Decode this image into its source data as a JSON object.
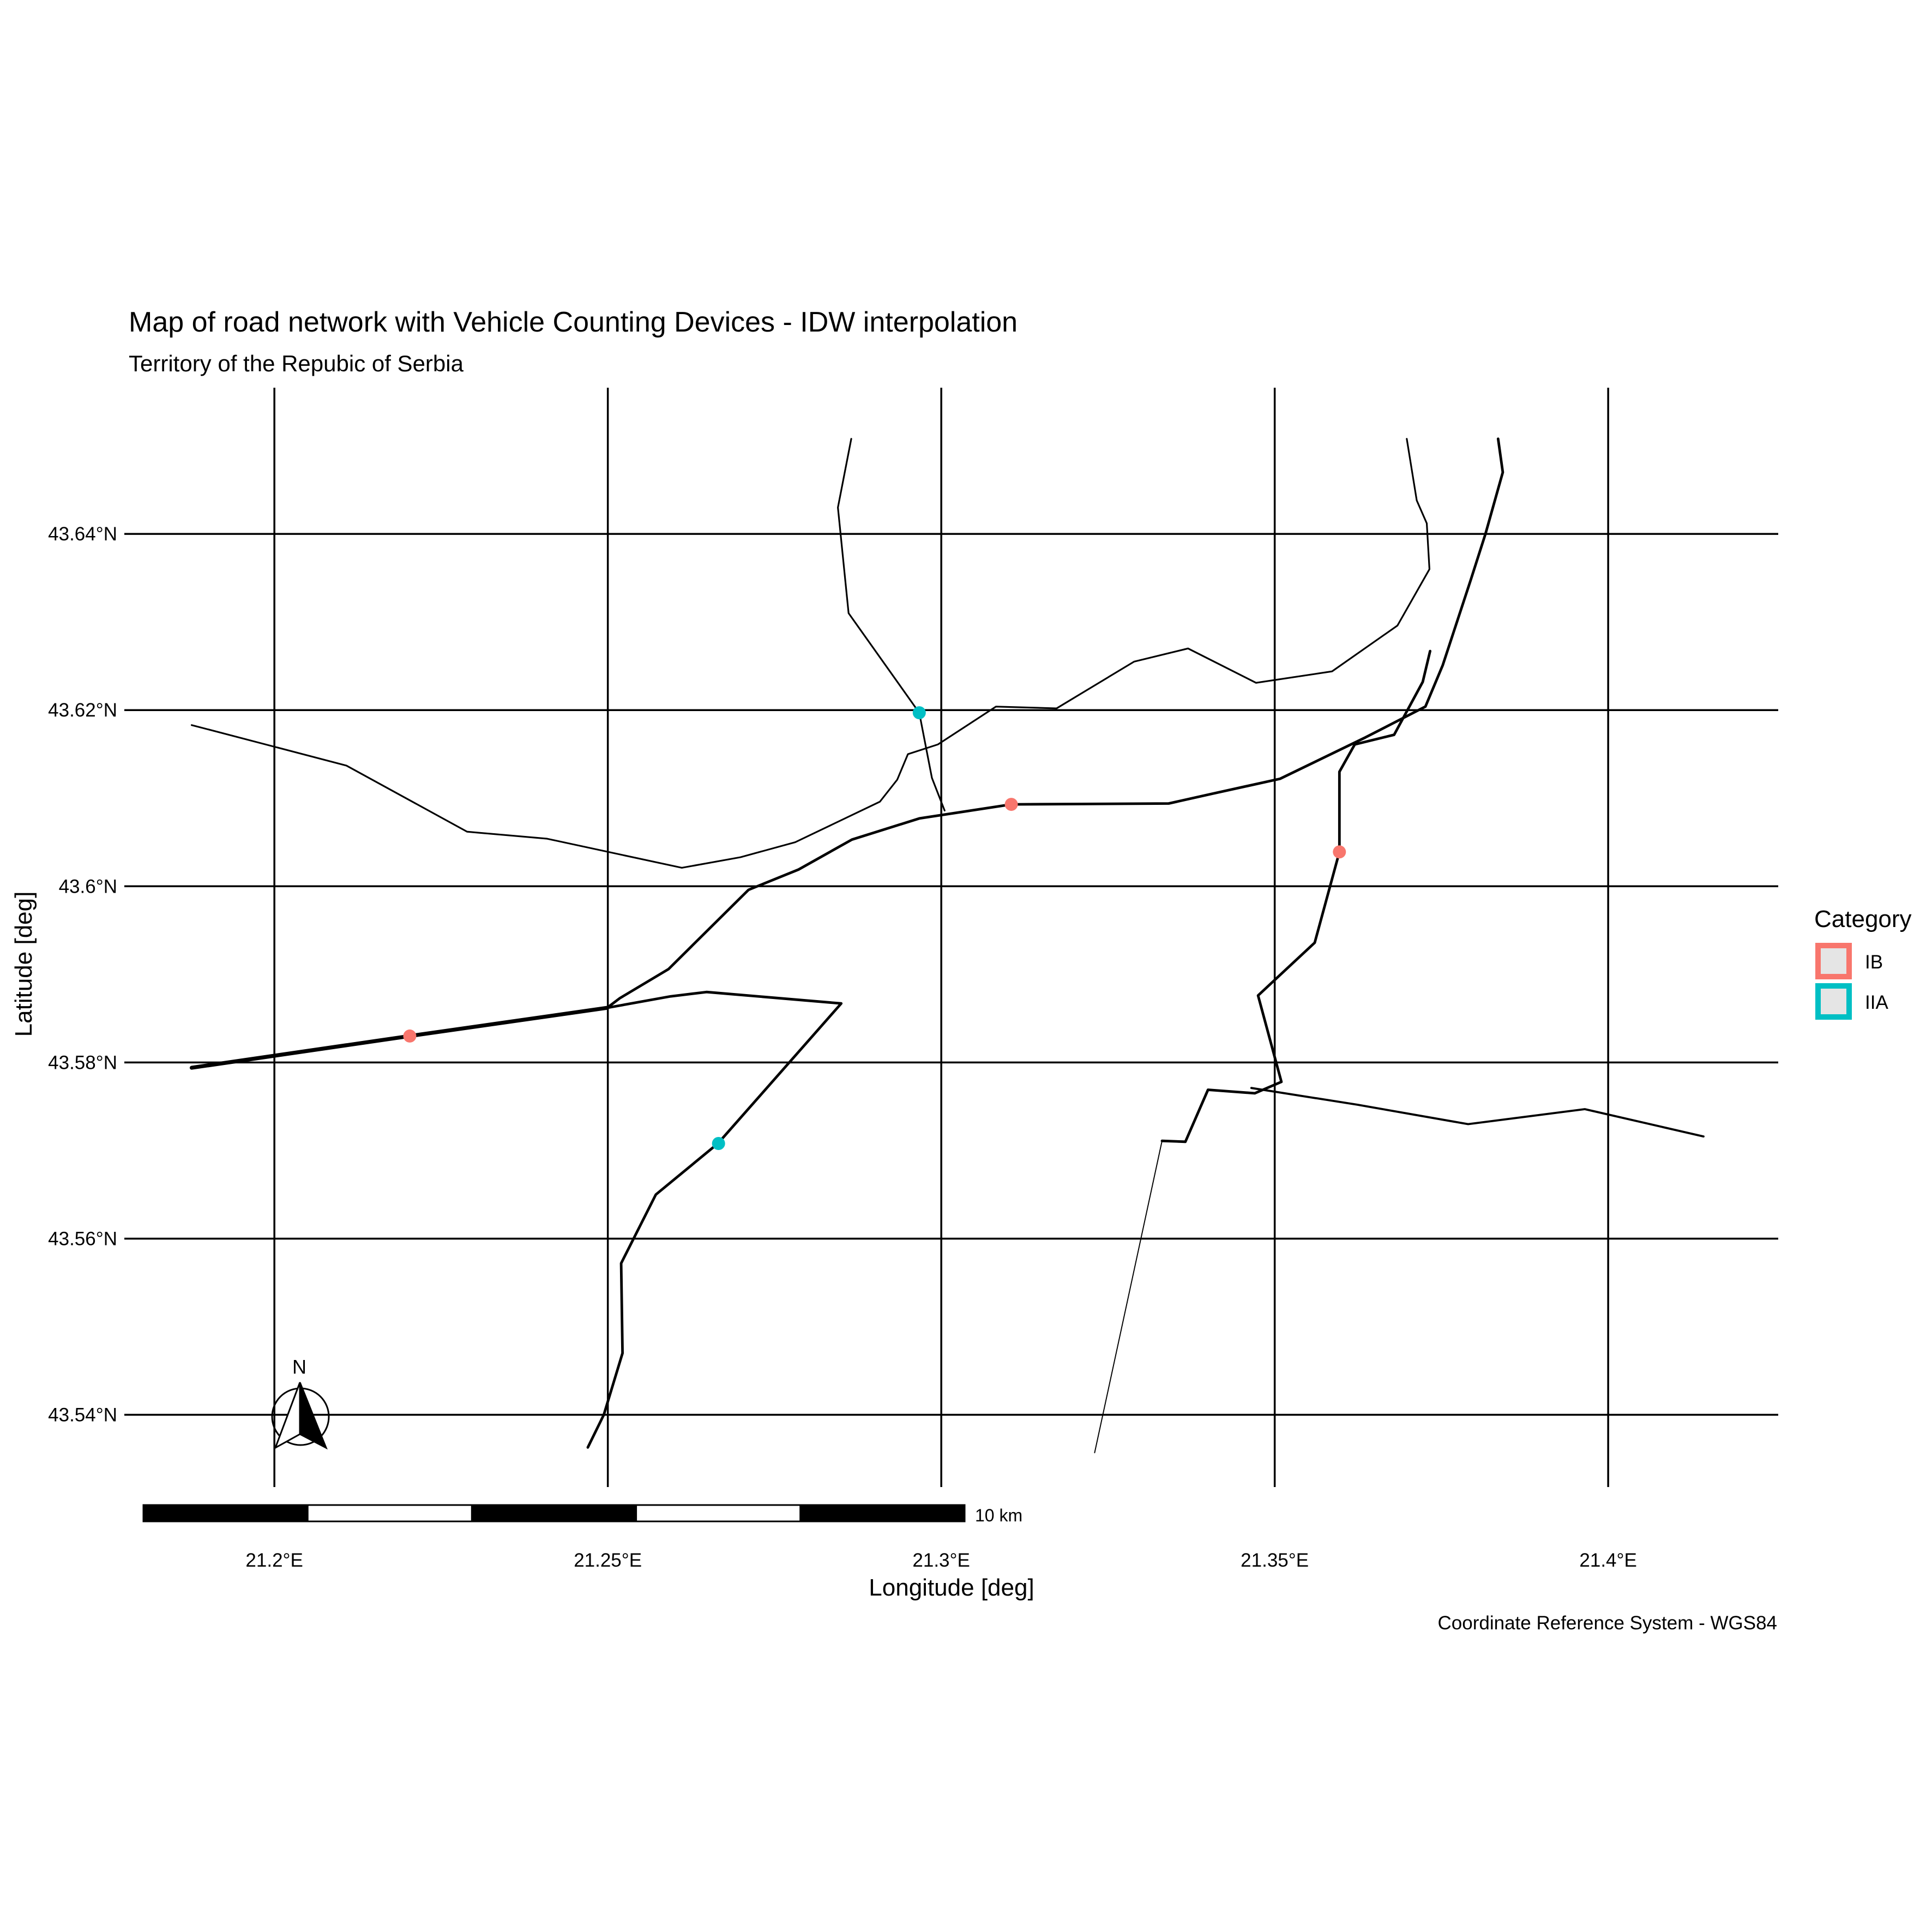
{
  "title": "Map of road network with Vehicle Counting Devices - IDW interpolation",
  "subtitle": "Territory of the Repubic of Serbia",
  "caption": "Coordinate Reference System - WGS84",
  "x_axis": {
    "label": "Longitude [deg]",
    "ticks": [
      {
        "value": 21.2,
        "label": "21.2°E"
      },
      {
        "value": 21.25,
        "label": "21.25°E"
      },
      {
        "value": 21.3,
        "label": "21.3°E"
      },
      {
        "value": 21.35,
        "label": "21.35°E"
      },
      {
        "value": 21.4,
        "label": "21.4°E"
      }
    ],
    "range": [
      21.1775,
      21.4255
    ]
  },
  "y_axis": {
    "label": "Latitude [deg]",
    "ticks": [
      {
        "value": 43.54,
        "label": "43.54°N"
      },
      {
        "value": 43.56,
        "label": "43.56°N"
      },
      {
        "value": 43.58,
        "label": "43.58°N"
      },
      {
        "value": 43.6,
        "label": "43.6°N"
      },
      {
        "value": 43.62,
        "label": "43.62°N"
      },
      {
        "value": 43.64,
        "label": "43.64°N"
      }
    ],
    "range": [
      43.5318,
      43.6566
    ]
  },
  "legend": {
    "title": "Category",
    "placement": "right",
    "items": [
      {
        "key": "IB",
        "label": "IB",
        "color": "#F8766D"
      },
      {
        "key": "IIA",
        "label": "IIA",
        "color": "#00BFC4"
      }
    ]
  },
  "north_arrow": {
    "label": "N"
  },
  "scale_bar": {
    "label": "10 km",
    "segments": 5
  },
  "chart_data": {
    "type": "map",
    "graticule": true,
    "counting_devices": [
      {
        "category": "IB",
        "lon": 21.2203,
        "lat": 43.583
      },
      {
        "category": "IB",
        "lon": 21.3105,
        "lat": 43.6093
      },
      {
        "category": "IB",
        "lon": 21.3597,
        "lat": 43.6039
      },
      {
        "category": "IIA",
        "lon": 21.2666,
        "lat": 43.5708
      },
      {
        "category": "IIA",
        "lon": 21.2967,
        "lat": 43.6197
      }
    ],
    "roads": [
      {
        "weight": 3,
        "points": [
          [
            21.1876,
            43.5794
          ],
          [
            21.2203,
            43.583
          ],
          [
            21.2499,
            43.5862
          ]
        ]
      },
      {
        "weight": 2,
        "points": [
          [
            21.2499,
            43.5862
          ],
          [
            21.2518,
            43.5873
          ],
          [
            21.2591,
            43.5906
          ],
          [
            21.2663,
            43.596
          ],
          [
            21.2711,
            43.5996
          ],
          [
            21.2786,
            43.6019
          ],
          [
            21.2866,
            43.6053
          ],
          [
            21.2967,
            43.6077
          ],
          [
            21.3105,
            43.6093
          ],
          [
            21.3341,
            43.6094
          ],
          [
            21.3406,
            43.6105
          ],
          [
            21.3508,
            43.6122
          ],
          [
            21.3636,
            43.6169
          ],
          [
            21.3726,
            43.6204
          ],
          [
            21.3752,
            43.6251
          ],
          [
            21.3794,
            43.6348
          ],
          [
            21.3816,
            43.64
          ],
          [
            21.3842,
            43.647
          ],
          [
            21.3835,
            43.6508
          ]
        ]
      },
      {
        "weight": 2,
        "points": [
          [
            21.2499,
            43.5862
          ],
          [
            21.2594,
            43.5875
          ],
          [
            21.2648,
            43.588
          ],
          [
            21.285,
            43.5867
          ],
          [
            21.2665,
            43.5708
          ],
          [
            21.2572,
            43.565
          ],
          [
            21.252,
            43.5572
          ],
          [
            21.2522,
            43.547
          ],
          [
            21.2494,
            43.54
          ],
          [
            21.247,
            43.5363
          ]
        ]
      },
      {
        "weight": 2,
        "points": [
          [
            21.3733,
            43.6267
          ],
          [
            21.3722,
            43.6232
          ],
          [
            21.3679,
            43.6172
          ],
          [
            21.362,
            43.6161
          ],
          [
            21.3597,
            43.613
          ],
          [
            21.3597,
            43.6039
          ],
          [
            21.356,
            43.5936
          ],
          [
            21.3475,
            43.5876
          ],
          [
            21.351,
            43.5778
          ],
          [
            21.347,
            43.5765
          ],
          [
            21.34,
            43.5769
          ],
          [
            21.3366,
            43.571
          ],
          [
            21.3331,
            43.5711
          ]
        ]
      },
      {
        "weight": 1.6,
        "points": [
          [
            21.3465,
            43.5771
          ],
          [
            21.3624,
            43.5752
          ],
          [
            21.379,
            43.573
          ],
          [
            21.3965,
            43.5747
          ],
          [
            21.4143,
            43.5716
          ]
        ]
      },
      {
        "weight": 0.8,
        "points": [
          [
            21.3331,
            43.5711
          ],
          [
            21.323,
            43.5357
          ]
        ]
      },
      {
        "weight": 1.3,
        "points": [
          [
            21.1876,
            43.6183
          ],
          [
            21.2108,
            43.6137
          ],
          [
            21.2289,
            43.6062
          ],
          [
            21.2409,
            43.6054
          ],
          [
            21.2611,
            43.6021
          ],
          [
            21.2699,
            43.6033
          ],
          [
            21.2781,
            43.605
          ],
          [
            21.2908,
            43.6096
          ],
          [
            21.2934,
            43.6121
          ],
          [
            21.295,
            43.615
          ],
          [
            21.2995,
            43.6161
          ],
          [
            21.3082,
            43.6204
          ],
          [
            21.3173,
            43.6202
          ],
          [
            21.3289,
            43.6255
          ],
          [
            21.337,
            43.627
          ],
          [
            21.3472,
            43.6231
          ],
          [
            21.3586,
            43.6244
          ],
          [
            21.3684,
            43.6296
          ],
          [
            21.3732,
            43.636
          ],
          [
            21.3728,
            43.6412
          ],
          [
            21.3713,
            43.6438
          ],
          [
            21.3698,
            43.6508
          ]
        ]
      },
      {
        "weight": 1.3,
        "points": [
          [
            21.2865,
            43.6508
          ],
          [
            21.2845,
            43.643
          ],
          [
            21.2861,
            43.631
          ],
          [
            21.2967,
            43.6197
          ],
          [
            21.2986,
            43.6123
          ],
          [
            21.3005,
            43.6086
          ]
        ]
      }
    ]
  }
}
